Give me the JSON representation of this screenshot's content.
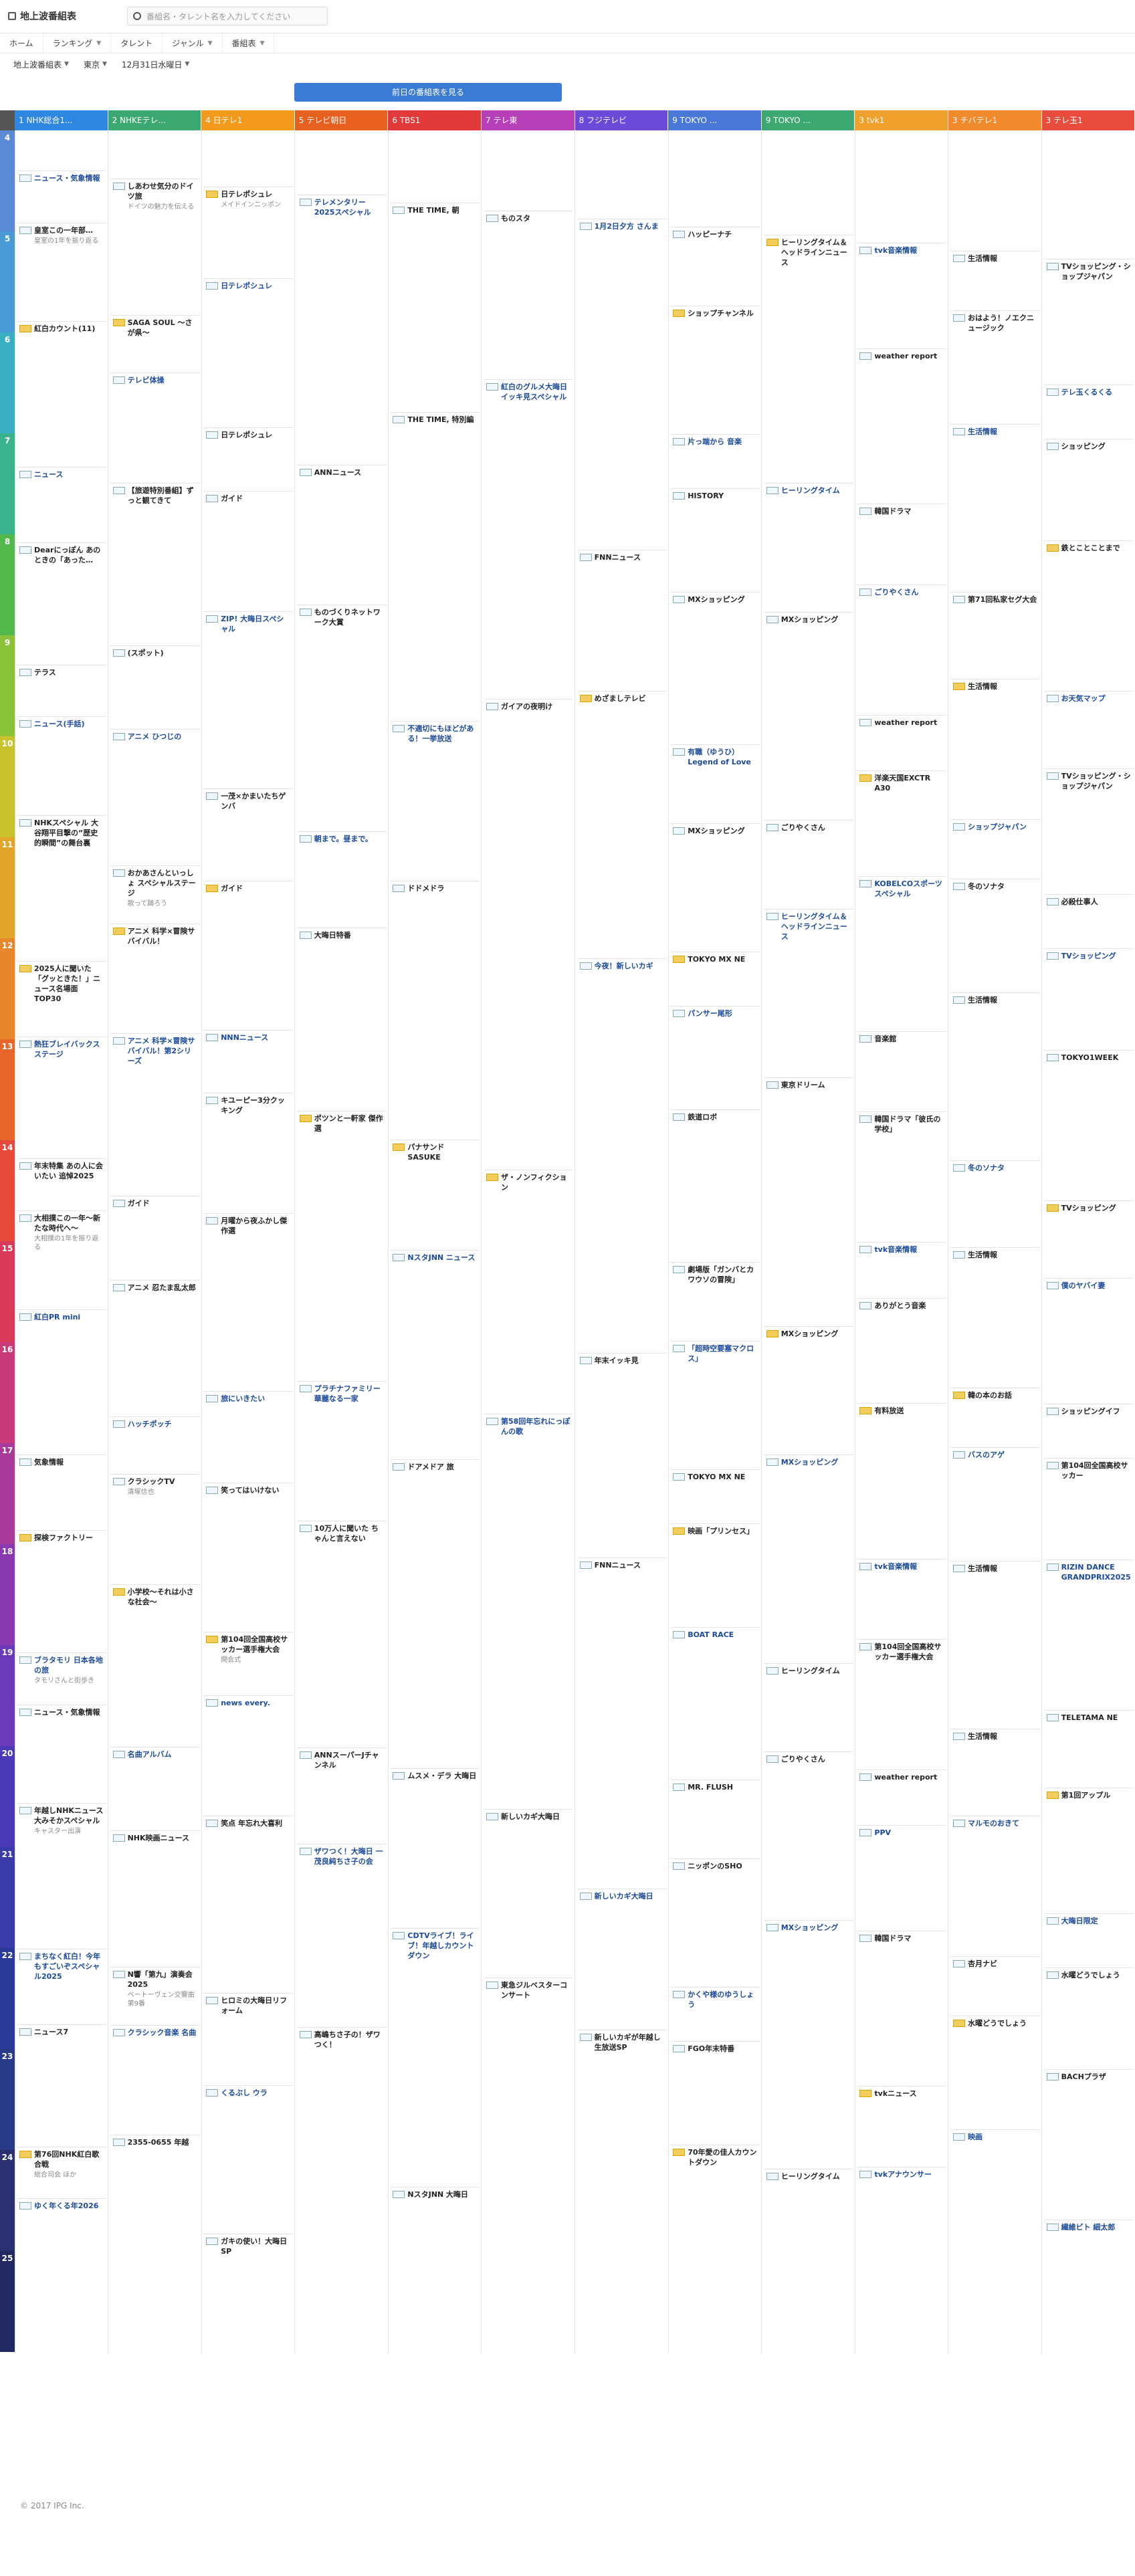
{
  "header": {
    "site_title": "地上波番組表",
    "search_placeholder": "番組名・タレント名を入力してください"
  },
  "nav": [
    {
      "label": "ホーム"
    },
    {
      "label": "ランキング",
      "dropdown": true
    },
    {
      "label": "タレント"
    },
    {
      "label": "ジャンル",
      "dropdown": true
    },
    {
      "label": "番組表",
      "dropdown": true
    }
  ],
  "filters": {
    "broadcast": "地上波番組表",
    "region": "東京",
    "date": "12月31日水曜日"
  },
  "prev_button": "前日の番組表を見る",
  "hours": [
    "4",
    "5",
    "6",
    "7",
    "8",
    "9",
    "10",
    "11",
    "12",
    "13",
    "14",
    "15",
    "16",
    "17",
    "18",
    "19",
    "20",
    "21",
    "22",
    "23",
    "24",
    "25"
  ],
  "channels": [
    {
      "label": "1 NHK総合1...",
      "color": "#2e87e0"
    },
    {
      "label": "2 NHKEテレ...",
      "color": "#3aa870"
    },
    {
      "label": "4 日テレ1",
      "color": "#f39a1c"
    },
    {
      "label": "5 テレビ朝日",
      "color": "#e8601f"
    },
    {
      "label": "6 TBS1",
      "color": "#e23a3a"
    },
    {
      "label": "7 テレ東",
      "color": "#b73fb7"
    },
    {
      "label": "8 フジテレビ",
      "color": "#6a4ad9"
    },
    {
      "label": "9 TOKYO ...",
      "color": "#4a78d9"
    },
    {
      "label": "9 TOKYO ...",
      "color": "#3aa870"
    },
    {
      "label": "3 tvk1",
      "color": "#f0a02c"
    },
    {
      "label": "3 チバテレ1",
      "color": "#f08a2c"
    },
    {
      "label": "3 テレ玉1",
      "color": "#e84c3c"
    }
  ],
  "programs": [
    [
      {
        "title": "ニュース・気象情報",
        "desc": ""
      },
      {
        "title": "皇室この一年部…",
        "desc": "皇室の1年を振り返る"
      },
      {
        "title": "紅白カウント(11)",
        "desc": ""
      },
      {
        "title": "ニュース",
        "desc": ""
      },
      {
        "title": "Dearにっぽん あのときの「あった…",
        "desc": ""
      },
      {
        "title": "テラス",
        "desc": ""
      },
      {
        "title": "ニュース(手話)",
        "desc": ""
      },
      {
        "title": "NHKスペシャル 大谷翔平目撃の“歴史的瞬間”の舞台裏",
        "desc": ""
      },
      {
        "title": "2025人に聞いた「グッときた！」ニュース名場面TOP30",
        "desc": ""
      },
      {
        "title": "熱狂ブレイバックス ステージ",
        "desc": ""
      },
      {
        "title": "年末特集 あの人に会いたい 追悼2025",
        "desc": ""
      },
      {
        "title": "大相撲この一年〜新たな時代へ〜",
        "desc": "大相撲の1年を振り返る"
      },
      {
        "title": "紅白PR mini",
        "desc": ""
      },
      {
        "title": "気象情報",
        "desc": ""
      },
      {
        "title": "探検ファクトリー",
        "desc": ""
      },
      {
        "title": "ブラタモリ 日本各地の旅",
        "desc": "タモリさんと街歩き"
      },
      {
        "title": "ニュース・気象情報",
        "desc": ""
      },
      {
        "title": "年越しNHKニュース大みそかスペシャル",
        "desc": "キャスター出演"
      },
      {
        "title": "まちなく紅白！今年もすごいぞスペシャル2025",
        "desc": ""
      },
      {
        "title": "ニュース7",
        "desc": ""
      },
      {
        "title": "第76回NHK紅白歌合戦",
        "desc": "総合司会 ほか"
      },
      {
        "title": "ゆく年くる年2026",
        "desc": ""
      }
    ],
    [
      {
        "title": "しあわせ気分のドイツ旅",
        "desc": "ドイツの魅力を伝える"
      },
      {
        "title": "SAGA SOUL 〜さが県〜",
        "desc": ""
      },
      {
        "title": "テレビ体操",
        "desc": ""
      },
      {
        "title": "【旅遊特別番組】ずっと観てきて",
        "desc": ""
      },
      {
        "title": "(スポット)",
        "desc": ""
      },
      {
        "title": "アニメ ひつじの",
        "desc": ""
      },
      {
        "title": "おかあさんといっしょ スペシャルステージ",
        "desc": "歌って踊ろう"
      },
      {
        "title": "アニメ 科学×冒険サバイバル！",
        "desc": ""
      },
      {
        "title": "アニメ 科学×冒険サバイバル！第2シリーズ",
        "desc": ""
      },
      {
        "title": "ガイド",
        "desc": ""
      },
      {
        "title": "アニメ 忍たま乱太郎",
        "desc": ""
      },
      {
        "title": "ハッチポッチ",
        "desc": ""
      },
      {
        "title": "クラシックTV",
        "desc": "清塚信也"
      },
      {
        "title": "小学校〜それは小さな社会〜",
        "desc": ""
      },
      {
        "title": "名曲アルバム",
        "desc": ""
      },
      {
        "title": "NHK映画ニュース",
        "desc": ""
      },
      {
        "title": "N響「第九」演奏会 2025",
        "desc": "ベートーヴェン交響曲第9番"
      },
      {
        "title": "クラシック音楽 名曲",
        "desc": ""
      },
      {
        "title": "2355-0655 年越",
        "desc": ""
      }
    ],
    [
      {
        "title": "日テレポシュレ",
        "desc": "メイドインニッポン"
      },
      {
        "title": "日テレポシュレ",
        "desc": ""
      },
      {
        "title": "日テレポシュレ",
        "desc": ""
      },
      {
        "title": "ガイド",
        "desc": ""
      },
      {
        "title": "ZIP! 大晦日スペシャル",
        "desc": ""
      },
      {
        "title": "一茂×かまいたちゲンバ",
        "desc": ""
      },
      {
        "title": "ガイド",
        "desc": ""
      },
      {
        "title": "NNNニュース",
        "desc": ""
      },
      {
        "title": "キユーピー3分クッキング",
        "desc": ""
      },
      {
        "title": "月曜から夜ふかし傑作選",
        "desc": ""
      },
      {
        "title": "旅にいきたい",
        "desc": ""
      },
      {
        "title": "笑ってはいけない",
        "desc": ""
      },
      {
        "title": "第104回全国高校サッカー選手権大会",
        "desc": "開会式"
      },
      {
        "title": "news every.",
        "desc": ""
      },
      {
        "title": "笑点 年忘れ大喜利",
        "desc": ""
      },
      {
        "title": "ヒロミの大晦日リフォーム",
        "desc": ""
      },
      {
        "title": "くるぶし ウラ",
        "desc": ""
      },
      {
        "title": "ガキの使い！大晦日SP",
        "desc": ""
      }
    ],
    [
      {
        "title": "テレメンタリー2025スペシャル",
        "desc": ""
      },
      {
        "title": "ANNニュース",
        "desc": ""
      },
      {
        "title": "ものづくりネットワーク大賞",
        "desc": ""
      },
      {
        "title": "朝まで。昼まで。",
        "desc": ""
      },
      {
        "title": "大晦日特番",
        "desc": ""
      },
      {
        "title": "ポツンと一軒家 傑作選",
        "desc": ""
      },
      {
        "title": "プラチナファミリー 華麗なる一家",
        "desc": ""
      },
      {
        "title": "10万人に聞いた ちゃんと言えない",
        "desc": ""
      },
      {
        "title": "ANNスーパーJチャンネル",
        "desc": ""
      },
      {
        "title": "ザワつく！大晦日 一茂良純ちさ子の会",
        "desc": ""
      },
      {
        "title": "高嶋ちさ子の！ザワつく！",
        "desc": ""
      }
    ],
    [
      {
        "title": "THE TIME, 朝",
        "desc": ""
      },
      {
        "title": "THE TIME, 特別編",
        "desc": ""
      },
      {
        "title": "不適切にもほどがある！一挙放送",
        "desc": ""
      },
      {
        "title": "ドドメドラ",
        "desc": ""
      },
      {
        "title": "パナサンド SASUKE",
        "desc": ""
      },
      {
        "title": "NスタJNN ニュース",
        "desc": ""
      },
      {
        "title": "ドアメドア 旅",
        "desc": ""
      },
      {
        "title": "ムスメ・デラ 大晦日",
        "desc": ""
      },
      {
        "title": "CDTVライブ！ライブ！年越しカウントダウン",
        "desc": ""
      },
      {
        "title": "NスタJNN 大晦日",
        "desc": ""
      }
    ],
    [
      {
        "title": "ものスタ",
        "desc": ""
      },
      {
        "title": "紅白のグルメ大晦日イッキ見スペシャル",
        "desc": ""
      },
      {
        "title": "ガイアの夜明け",
        "desc": ""
      },
      {
        "title": "ザ・ノンフィクション",
        "desc": ""
      },
      {
        "title": "第58回年忘れにっぽんの歌",
        "desc": ""
      },
      {
        "title": "新しいカギ大晦日",
        "desc": ""
      },
      {
        "title": "東急ジルベスターコンサート",
        "desc": ""
      }
    ],
    [
      {
        "title": "1月2日夕方 さんま",
        "desc": ""
      },
      {
        "title": "FNNニュース",
        "desc": ""
      },
      {
        "title": "めざましテレビ",
        "desc": ""
      },
      {
        "title": "今夜！新しいカギ",
        "desc": ""
      },
      {
        "title": "年末イッキ見",
        "desc": ""
      },
      {
        "title": "FNNニュース",
        "desc": ""
      },
      {
        "title": "新しいカギ大晦日",
        "desc": ""
      },
      {
        "title": "新しいカギが年越し生放送SP",
        "desc": ""
      }
    ],
    [
      {
        "title": "ハッピーナチ",
        "desc": ""
      },
      {
        "title": "ショップチャンネル",
        "desc": ""
      },
      {
        "title": "片っ端から 音楽",
        "desc": ""
      },
      {
        "title": "HISTORY",
        "desc": ""
      },
      {
        "title": "MXショッピング",
        "desc": ""
      },
      {
        "title": "有職（ゆうひ）Legend of Love",
        "desc": ""
      },
      {
        "title": "MXショッピング",
        "desc": ""
      },
      {
        "title": "TOKYO MX NE",
        "desc": ""
      },
      {
        "title": "パンサー尾形",
        "desc": ""
      },
      {
        "title": "鉄道ロボ",
        "desc": ""
      },
      {
        "title": "劇場版「ガンバとカワウソの冒険」",
        "desc": ""
      },
      {
        "title": "「超時空要塞マクロス」",
        "desc": ""
      },
      {
        "title": "TOKYO MX NE",
        "desc": ""
      },
      {
        "title": "映画「プリンセス」",
        "desc": ""
      },
      {
        "title": "BOAT RACE",
        "desc": ""
      },
      {
        "title": "MR. FLUSH",
        "desc": ""
      },
      {
        "title": "ニッポンのSHO",
        "desc": ""
      },
      {
        "title": "かくや様のゆうしょう",
        "desc": ""
      },
      {
        "title": "FGO年末特番",
        "desc": ""
      },
      {
        "title": "70年愛の佳人カウントダウン",
        "desc": ""
      }
    ],
    [
      {
        "title": "ヒーリングタイム＆ヘッドラインニュース",
        "desc": ""
      },
      {
        "title": "ヒーリングタイム",
        "desc": ""
      },
      {
        "title": "MXショッピング",
        "desc": ""
      },
      {
        "title": "ごりやくさん",
        "desc": ""
      },
      {
        "title": "ヒーリングタイム＆ヘッドラインニュース",
        "desc": ""
      },
      {
        "title": "東京ドリーム",
        "desc": ""
      },
      {
        "title": "MXショッピング",
        "desc": ""
      },
      {
        "title": "MXショッピング",
        "desc": ""
      },
      {
        "title": "ヒーリングタイム",
        "desc": ""
      },
      {
        "title": "ごりやくさん",
        "desc": ""
      },
      {
        "title": "MXショッピング",
        "desc": ""
      },
      {
        "title": "ヒーリングタイム",
        "desc": ""
      }
    ],
    [
      {
        "title": "tvk音楽情報",
        "desc": ""
      },
      {
        "title": "weather report",
        "desc": ""
      },
      {
        "title": "韓国ドラマ",
        "desc": ""
      },
      {
        "title": "ごりやくさん",
        "desc": ""
      },
      {
        "title": "weather report",
        "desc": ""
      },
      {
        "title": "洋楽天国EXCTR A30",
        "desc": ""
      },
      {
        "title": "KOBELCOスポーツスペシャル",
        "desc": ""
      },
      {
        "title": "音楽館",
        "desc": ""
      },
      {
        "title": "韓国ドラマ「彼氏の学校」",
        "desc": ""
      },
      {
        "title": "tvk音楽情報",
        "desc": ""
      },
      {
        "title": "ありがとう音楽",
        "desc": ""
      },
      {
        "title": "有料放送",
        "desc": ""
      },
      {
        "title": "tvk音楽情報",
        "desc": ""
      },
      {
        "title": "第104回全国高校サッカー選手権大会",
        "desc": ""
      },
      {
        "title": "weather report",
        "desc": ""
      },
      {
        "title": "PPV",
        "desc": ""
      },
      {
        "title": "韓国ドラマ",
        "desc": ""
      },
      {
        "title": "tvkニュース",
        "desc": ""
      },
      {
        "title": "tvkアナウンサー",
        "desc": ""
      }
    ],
    [
      {
        "title": "生活情報",
        "desc": ""
      },
      {
        "title": "おはよう！ノエクニュージック",
        "desc": ""
      },
      {
        "title": "生活情報",
        "desc": ""
      },
      {
        "title": "第71回私家セグ大会",
        "desc": ""
      },
      {
        "title": "生活情報",
        "desc": ""
      },
      {
        "title": "ショップジャパン",
        "desc": ""
      },
      {
        "title": "冬のソナタ",
        "desc": ""
      },
      {
        "title": "生活情報",
        "desc": ""
      },
      {
        "title": "冬のソナタ",
        "desc": ""
      },
      {
        "title": "生活情報",
        "desc": ""
      },
      {
        "title": "韓の本のお話",
        "desc": ""
      },
      {
        "title": "バスのアゲ",
        "desc": ""
      },
      {
        "title": "生活情報",
        "desc": ""
      },
      {
        "title": "生活情報",
        "desc": ""
      },
      {
        "title": "マルモのおきて",
        "desc": ""
      },
      {
        "title": "杏月ナビ",
        "desc": ""
      },
      {
        "title": "水曜どうでしょう",
        "desc": ""
      },
      {
        "title": "映画",
        "desc": ""
      }
    ],
    [
      {
        "title": "TVショッピング・ショップジャパン",
        "desc": ""
      },
      {
        "title": "テレ玉くるくる",
        "desc": ""
      },
      {
        "title": "ショッピング",
        "desc": ""
      },
      {
        "title": "鉄とことことまで",
        "desc": ""
      },
      {
        "title": "お天気マップ",
        "desc": ""
      },
      {
        "title": "TVショッピング・ショップジャパン",
        "desc": ""
      },
      {
        "title": "必殺仕事人",
        "desc": ""
      },
      {
        "title": "TVショッピング",
        "desc": ""
      },
      {
        "title": "TOKYO1WEEK",
        "desc": ""
      },
      {
        "title": "TVショッピング",
        "desc": ""
      },
      {
        "title": "僕のヤバイ妻",
        "desc": ""
      },
      {
        "title": "ショッピングイフ",
        "desc": ""
      },
      {
        "title": "第104回全国高校サッカー",
        "desc": ""
      },
      {
        "title": "RIZIN DANCE GRANDPRIX2025",
        "desc": ""
      },
      {
        "title": "TELETAMA NE",
        "desc": ""
      },
      {
        "title": "第1回アップル",
        "desc": ""
      },
      {
        "title": "大晦日限定",
        "desc": ""
      },
      {
        "title": "水曜どうでしょう",
        "desc": ""
      },
      {
        "title": "BACHプラザ",
        "desc": ""
      },
      {
        "title": "繊維ビト 細太郎",
        "desc": ""
      }
    ]
  ],
  "footer": "© 2017 IPG Inc."
}
